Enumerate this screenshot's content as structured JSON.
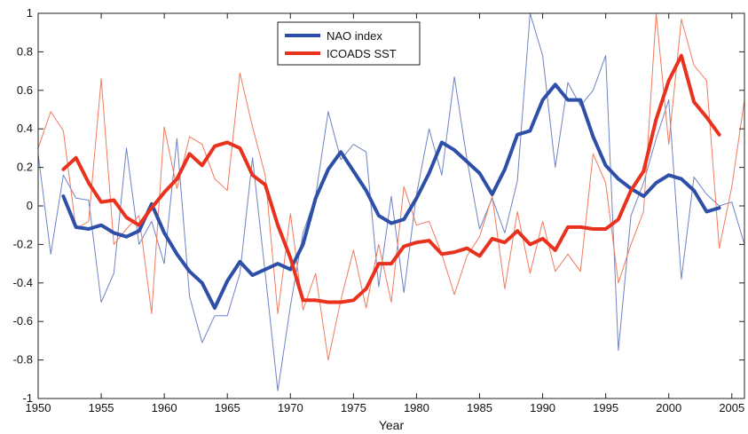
{
  "chart_data": {
    "type": "line",
    "title": "",
    "xlabel": "Year",
    "ylabel": "",
    "xlim": [
      1950,
      2006
    ],
    "ylim": [
      -1,
      1
    ],
    "xticks": [
      1950,
      1955,
      1960,
      1965,
      1970,
      1975,
      1980,
      1985,
      1990,
      1995,
      2000,
      2005
    ],
    "yticks": [
      -1,
      -0.8,
      -0.6,
      -0.4,
      -0.2,
      0,
      0.2,
      0.4,
      0.6,
      0.8,
      1
    ],
    "ytick_labels": [
      "-1",
      "-0.8",
      "-0.6",
      "-0.4",
      "-0.2",
      "0",
      "0.2",
      "0.4",
      "0.6",
      "0.8",
      "1"
    ],
    "grid": false,
    "legend_position": "top-center",
    "series": [
      {
        "name": "NAO index",
        "color": "#2e4fa8",
        "style": "thick",
        "x": [
          1952,
          1953,
          1954,
          1955,
          1956,
          1957,
          1958,
          1959,
          1960,
          1961,
          1962,
          1963,
          1964,
          1965,
          1966,
          1967,
          1968,
          1969,
          1970,
          1971,
          1972,
          1973,
          1974,
          1975,
          1976,
          1977,
          1978,
          1979,
          1980,
          1981,
          1982,
          1983,
          1984,
          1985,
          1986,
          1987,
          1988,
          1989,
          1990,
          1991,
          1992,
          1993,
          1994,
          1995,
          1996,
          1997,
          1998,
          1999,
          2000,
          2001,
          2002,
          2003,
          2004
        ],
        "y": [
          0.05,
          -0.11,
          -0.12,
          -0.1,
          -0.14,
          -0.16,
          -0.13,
          0.01,
          -0.14,
          -0.25,
          -0.34,
          -0.4,
          -0.53,
          -0.39,
          -0.29,
          -0.36,
          -0.33,
          -0.3,
          -0.33,
          -0.2,
          0.04,
          0.19,
          0.28,
          0.18,
          0.08,
          -0.05,
          -0.09,
          -0.07,
          0.04,
          0.17,
          0.33,
          0.29,
          0.23,
          0.17,
          0.06,
          0.19,
          0.37,
          0.39,
          0.55,
          0.63,
          0.55,
          0.55,
          0.36,
          0.21,
          0.14,
          0.09,
          0.05,
          0.12,
          0.16,
          0.14,
          0.08,
          -0.03,
          -0.01
        ]
      },
      {
        "name": "ICOADS SST",
        "color": "#e8321e",
        "style": "thick",
        "x": [
          1952,
          1953,
          1954,
          1955,
          1956,
          1957,
          1958,
          1959,
          1960,
          1961,
          1962,
          1963,
          1964,
          1965,
          1966,
          1967,
          1968,
          1969,
          1970,
          1971,
          1972,
          1973,
          1974,
          1975,
          1976,
          1977,
          1978,
          1979,
          1980,
          1981,
          1982,
          1983,
          1984,
          1985,
          1986,
          1987,
          1988,
          1989,
          1990,
          1991,
          1992,
          1993,
          1994,
          1995,
          1996,
          1997,
          1998,
          1999,
          2000,
          2001,
          2002,
          2003,
          2004
        ],
        "y": [
          0.19,
          0.25,
          0.12,
          0.02,
          0.03,
          -0.06,
          -0.1,
          -0.01,
          0.07,
          0.14,
          0.27,
          0.21,
          0.31,
          0.33,
          0.3,
          0.16,
          0.11,
          -0.1,
          -0.27,
          -0.49,
          -0.49,
          -0.5,
          -0.5,
          -0.49,
          -0.43,
          -0.3,
          -0.3,
          -0.21,
          -0.19,
          -0.18,
          -0.25,
          -0.24,
          -0.22,
          -0.26,
          -0.17,
          -0.19,
          -0.13,
          -0.2,
          -0.17,
          -0.23,
          -0.11,
          -0.11,
          -0.12,
          -0.12,
          -0.07,
          0.08,
          0.18,
          0.45,
          0.65,
          0.78,
          0.54,
          0.46,
          0.37
        ]
      },
      {
        "name": "",
        "color": "#6f82c4",
        "style": "thin",
        "x": [
          1950,
          1951,
          1952,
          1953,
          1954,
          1955,
          1956,
          1957,
          1958,
          1959,
          1960,
          1961,
          1962,
          1963,
          1964,
          1965,
          1966,
          1967,
          1968,
          1969,
          1970,
          1971,
          1972,
          1973,
          1974,
          1975,
          1976,
          1977,
          1978,
          1979,
          1980,
          1981,
          1982,
          1983,
          1984,
          1985,
          1986,
          1987,
          1988,
          1989,
          1990,
          1991,
          1992,
          1993,
          1994,
          1995,
          1996,
          1997,
          1998,
          1999,
          2000,
          2001,
          2002,
          2003,
          2004,
          2005,
          2006
        ],
        "y": [
          0.27,
          -0.25,
          0.16,
          0.04,
          0.03,
          -0.5,
          -0.35,
          0.3,
          -0.2,
          -0.08,
          -0.3,
          0.35,
          -0.47,
          -0.71,
          -0.57,
          -0.57,
          -0.35,
          0.25,
          -0.35,
          -0.96,
          -0.52,
          -0.14,
          0.05,
          0.49,
          0.24,
          0.32,
          0.28,
          -0.42,
          0.05,
          -0.45,
          0.06,
          0.4,
          0.16,
          0.67,
          0.24,
          -0.12,
          0.04,
          -0.14,
          0.13,
          1.0,
          0.78,
          0.2,
          0.64,
          0.52,
          0.6,
          0.78,
          -0.75,
          -0.05,
          0.12,
          0.35,
          0.55,
          -0.38,
          0.15,
          0.06,
          0.0,
          0.02,
          -0.2
        ]
      },
      {
        "name": "",
        "color": "#f07a5c",
        "style": "thin",
        "x": [
          1950,
          1951,
          1952,
          1953,
          1954,
          1955,
          1956,
          1957,
          1958,
          1959,
          1960,
          1961,
          1962,
          1963,
          1964,
          1965,
          1966,
          1967,
          1968,
          1969,
          1970,
          1971,
          1972,
          1973,
          1974,
          1975,
          1976,
          1977,
          1978,
          1979,
          1980,
          1981,
          1982,
          1983,
          1984,
          1985,
          1986,
          1987,
          1988,
          1989,
          1990,
          1991,
          1992,
          1993,
          1994,
          1995,
          1996,
          1997,
          1998,
          1999,
          2000,
          2001,
          2002,
          2003,
          2004,
          2005,
          2006
        ],
        "y": [
          0.3,
          0.49,
          0.39,
          -0.12,
          -0.08,
          0.66,
          -0.2,
          -0.12,
          -0.05,
          -0.56,
          0.41,
          0.09,
          0.36,
          0.32,
          0.14,
          0.08,
          0.69,
          0.41,
          0.16,
          -0.56,
          -0.04,
          -0.54,
          -0.35,
          -0.8,
          -0.49,
          -0.23,
          -0.53,
          -0.2,
          -0.5,
          0.1,
          -0.1,
          -0.08,
          -0.25,
          -0.46,
          -0.26,
          -0.16,
          0.05,
          -0.43,
          -0.03,
          -0.35,
          -0.08,
          -0.34,
          -0.25,
          -0.34,
          0.27,
          0.12,
          -0.4,
          -0.2,
          -0.03,
          1.0,
          0.32,
          0.97,
          0.73,
          0.65,
          -0.22,
          0.1,
          0.55
        ]
      }
    ]
  }
}
